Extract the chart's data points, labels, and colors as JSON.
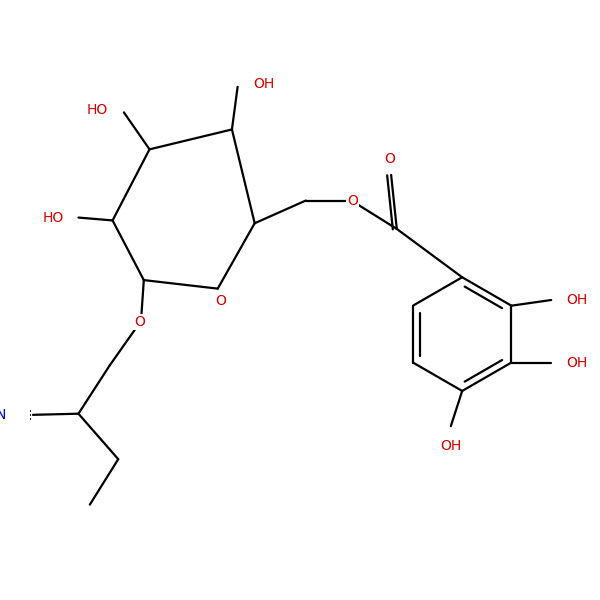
{
  "bg_color": "#ffffff",
  "bond_color": "#000000",
  "bond_width": 1.6,
  "font_size_label": 10,
  "red_color": "#cc0000",
  "blue_color": "#0000bb",
  "black_color": "#000000",
  "figsize": [
    6.0,
    6.0
  ],
  "dpi": 100,
  "xlim": [
    0,
    10
  ],
  "ylim": [
    0,
    10
  ]
}
